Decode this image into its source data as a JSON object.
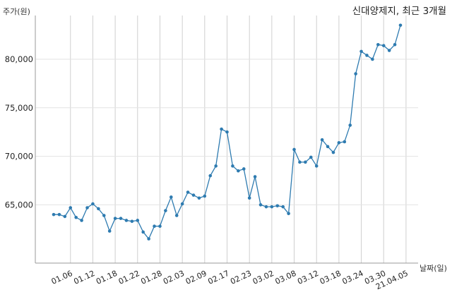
{
  "chart_data": {
    "type": "line",
    "title": "신대양제지, 최근 3개월",
    "ylabel": "주가(원)",
    "xlabel": "날짜(일)",
    "ylim": [
      59000,
      84500
    ],
    "yticks": [
      65000,
      70000,
      75000,
      80000
    ],
    "ytick_labels": [
      "65,000",
      "70,000",
      "75,000",
      "80,000"
    ],
    "xtick_labels": [
      "01.06",
      "01.12",
      "01.18",
      "01.22",
      "01.28",
      "02.03",
      "02.09",
      "02.17",
      "02.23",
      "03.02",
      "03.08",
      "03.12",
      "03.18",
      "03.24",
      "03.30",
      "21.04.05"
    ],
    "xtick_indices": [
      3,
      7,
      11,
      15,
      19,
      23,
      27,
      31,
      35,
      39,
      43,
      47,
      51,
      55,
      59,
      63
    ],
    "grid": "vertical",
    "color": "#2e7bb0",
    "values": [
      64000,
      64000,
      63800,
      64700,
      63700,
      63400,
      64700,
      65100,
      64600,
      63900,
      62300,
      63600,
      63600,
      63400,
      63300,
      63400,
      62200,
      61500,
      62800,
      62800,
      64400,
      65800,
      63900,
      65100,
      66300,
      66000,
      65700,
      65900,
      68000,
      69000,
      72800,
      72500,
      69000,
      68500,
      68700,
      65700,
      67900,
      65000,
      64800,
      64800,
      64900,
      64800,
      64100,
      70700,
      69400,
      69400,
      69900,
      69000,
      71700,
      71000,
      70400,
      71400,
      71500,
      73200,
      78500,
      80800,
      80400,
      80000,
      81500,
      81400,
      80900,
      81500,
      83500
    ]
  }
}
